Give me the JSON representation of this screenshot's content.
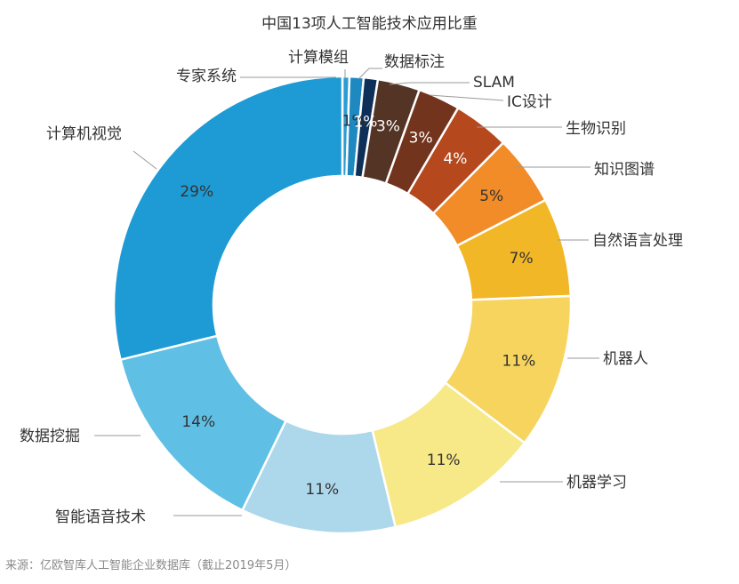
{
  "title": "中国13项人工智能技术应用比重",
  "source": "来源：亿欧智库人工智能企业数据库（截止2019年5月）",
  "chart_data": {
    "type": "pie",
    "subtype": "donut",
    "title": "中国13项人工智能技术应用比重",
    "unit": "%",
    "slices": [
      {
        "name": "专家系统",
        "value": 0.5,
        "label": "",
        "color": "#2A9DD5"
      },
      {
        "name": "计算模组",
        "value": 1,
        "label": "1%",
        "color": "#1E88C0"
      },
      {
        "name": "数据标注",
        "value": 1,
        "label": "1%",
        "color": "#0E2F57"
      },
      {
        "name": "SLAM",
        "value": 3,
        "label": "3%",
        "color": "#543425"
      },
      {
        "name": "IC设计",
        "value": 3,
        "label": "3%",
        "color": "#73341E"
      },
      {
        "name": "生物识别",
        "value": 4,
        "label": "4%",
        "color": "#B5481D"
      },
      {
        "name": "知识图谱",
        "value": 5,
        "label": "5%",
        "color": "#F28C28"
      },
      {
        "name": "自然语言处理",
        "value": 7,
        "label": "7%",
        "color": "#F2B726"
      },
      {
        "name": "机器人",
        "value": 11,
        "label": "11%",
        "color": "#F7D45E"
      },
      {
        "name": "机器学习",
        "value": 11,
        "label": "11%",
        "color": "#F7E888"
      },
      {
        "name": "智能语音技术",
        "value": 11,
        "label": "11%",
        "color": "#ADD8EC"
      },
      {
        "name": "数据挖掘",
        "value": 14,
        "label": "14%",
        "color": "#5FBFE4"
      },
      {
        "name": "计算机视觉",
        "value": 29,
        "label": "29%",
        "color": "#1E9BD5"
      }
    ]
  }
}
